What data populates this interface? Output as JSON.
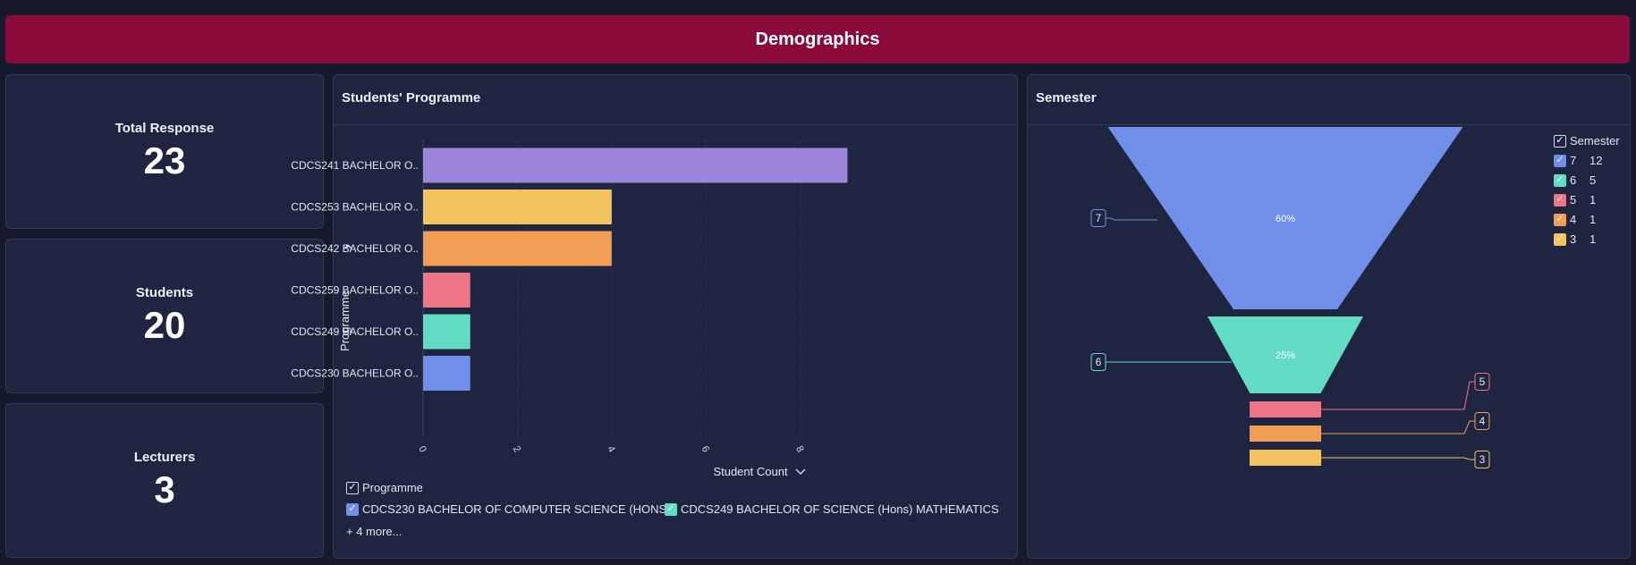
{
  "header": {
    "title": "Demographics"
  },
  "kpis": [
    {
      "label": "Total Response",
      "value": "23"
    },
    {
      "label": "Students",
      "value": "20"
    },
    {
      "label": "Lecturers",
      "value": "3"
    }
  ],
  "programme_panel": {
    "title": "Students' Programme",
    "y_axis_label": "Programme",
    "x_axis_label": "Student Count",
    "legend": {
      "title": "Programme",
      "items": [
        {
          "label": "CDCS230 BACHELOR OF COMPUTER SCIENCE (HONS.)",
          "color": "#6f8fe8"
        },
        {
          "label": "CDCS249 BACHELOR OF SCIENCE (Hons) MATHEMATICS",
          "color": "#63dcc4"
        }
      ],
      "more": "+ 4 more..."
    }
  },
  "semester_panel": {
    "title": "Semester",
    "legend": {
      "title": "Semester",
      "items": [
        {
          "label": "7",
          "value": "12",
          "color": "#6f8fe8"
        },
        {
          "label": "6",
          "value": "5",
          "color": "#63dcc4"
        },
        {
          "label": "5",
          "value": "1",
          "color": "#ee7585"
        },
        {
          "label": "4",
          "value": "1",
          "color": "#f29d56"
        },
        {
          "label": "3",
          "value": "1",
          "color": "#f3c35f"
        }
      ]
    }
  },
  "chart_data": [
    {
      "type": "bar",
      "orientation": "horizontal",
      "title": "Students' Programme",
      "xlabel": "Student Count",
      "ylabel": "Programme",
      "categories": [
        "CDCS241 BACHELOR O..",
        "CDCS253 BACHELOR O..",
        "CDCS242 BACHELOR O..",
        "CDCS259 BACHELOR O..",
        "CDCS249 BACHELOR O..",
        "CDCS230 BACHELOR O.."
      ],
      "values": [
        9,
        4,
        4,
        1,
        1,
        1
      ],
      "colors": [
        "#9b86db",
        "#f3c35f",
        "#f29d56",
        "#ee7585",
        "#63dcc4",
        "#6f8fe8"
      ],
      "xticks": [
        "0",
        "2",
        "4",
        "6",
        "8"
      ],
      "xlim": [
        0,
        9.2
      ],
      "grid": true
    },
    {
      "type": "funnel",
      "title": "Semester",
      "categories": [
        "7",
        "6",
        "5",
        "4",
        "3"
      ],
      "values": [
        12,
        5,
        1,
        1,
        1
      ],
      "labels": [
        "60%",
        "25%",
        "",
        "",
        ""
      ],
      "colors": [
        "#6f8fe8",
        "#63dcc4",
        "#ee7585",
        "#f29d56",
        "#f3c35f"
      ]
    }
  ]
}
